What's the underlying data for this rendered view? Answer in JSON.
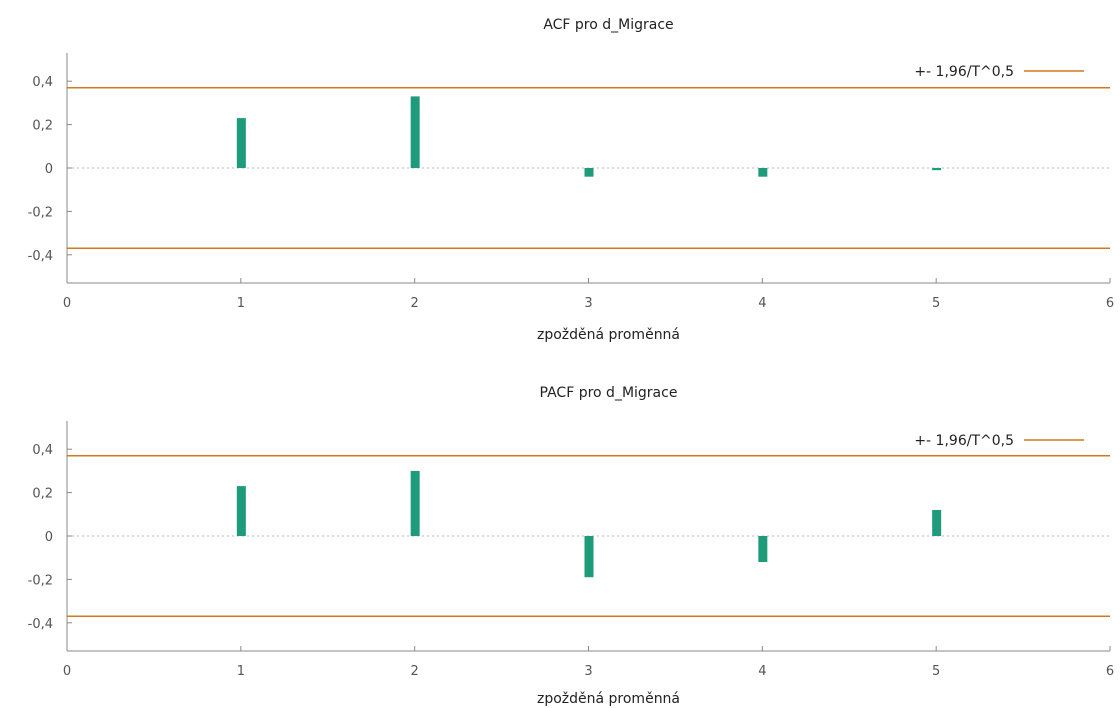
{
  "colors": {
    "bar": "#1e9b7a",
    "band": "#d4781a",
    "axis": "#888888",
    "zero": "#b8b8b8",
    "text": "#222222"
  },
  "chart_data": [
    {
      "type": "bar",
      "title": "ACF pro d_Migrace",
      "xlabel": "zpožděná proměnná",
      "ylabel": "",
      "x": [
        1,
        2,
        3,
        4,
        5
      ],
      "series": [
        {
          "values": [
            0.23,
            0.33,
            -0.04,
            -0.04,
            -0.01
          ]
        }
      ],
      "confidence_band": {
        "label": "+- 1,96/T^0,5",
        "value": 0.37
      },
      "xlim": [
        0,
        6
      ],
      "ylim": [
        -0.53,
        0.53
      ],
      "x_ticks": [
        "0",
        "1",
        "2",
        "3",
        "4",
        "5",
        "6"
      ],
      "y_ticks": [
        {
          "value": 0.4,
          "label": "0,4"
        },
        {
          "value": 0.2,
          "label": "0,2"
        },
        {
          "value": 0,
          "label": "0"
        },
        {
          "value": -0.2,
          "label": "-0,2"
        },
        {
          "value": -0.4,
          "label": "-0,4"
        }
      ],
      "legend_position": "top-right",
      "grid": false
    },
    {
      "type": "bar",
      "title": "PACF pro d_Migrace",
      "xlabel": "zpožděná proměnná",
      "ylabel": "",
      "x": [
        1,
        2,
        3,
        4,
        5
      ],
      "series": [
        {
          "values": [
            0.23,
            0.3,
            -0.19,
            -0.12,
            0.12
          ]
        }
      ],
      "confidence_band": {
        "label": "+- 1,96/T^0,5",
        "value": 0.37
      },
      "xlim": [
        0,
        6
      ],
      "ylim": [
        -0.53,
        0.53
      ],
      "x_ticks": [
        "0",
        "1",
        "2",
        "3",
        "4",
        "5",
        "6"
      ],
      "y_ticks": [
        {
          "value": 0.4,
          "label": "0,4"
        },
        {
          "value": 0.2,
          "label": "0,2"
        },
        {
          "value": 0,
          "label": "0"
        },
        {
          "value": -0.2,
          "label": "-0,2"
        },
        {
          "value": -0.4,
          "label": "-0,4"
        }
      ],
      "legend_position": "top-right",
      "grid": false
    }
  ]
}
